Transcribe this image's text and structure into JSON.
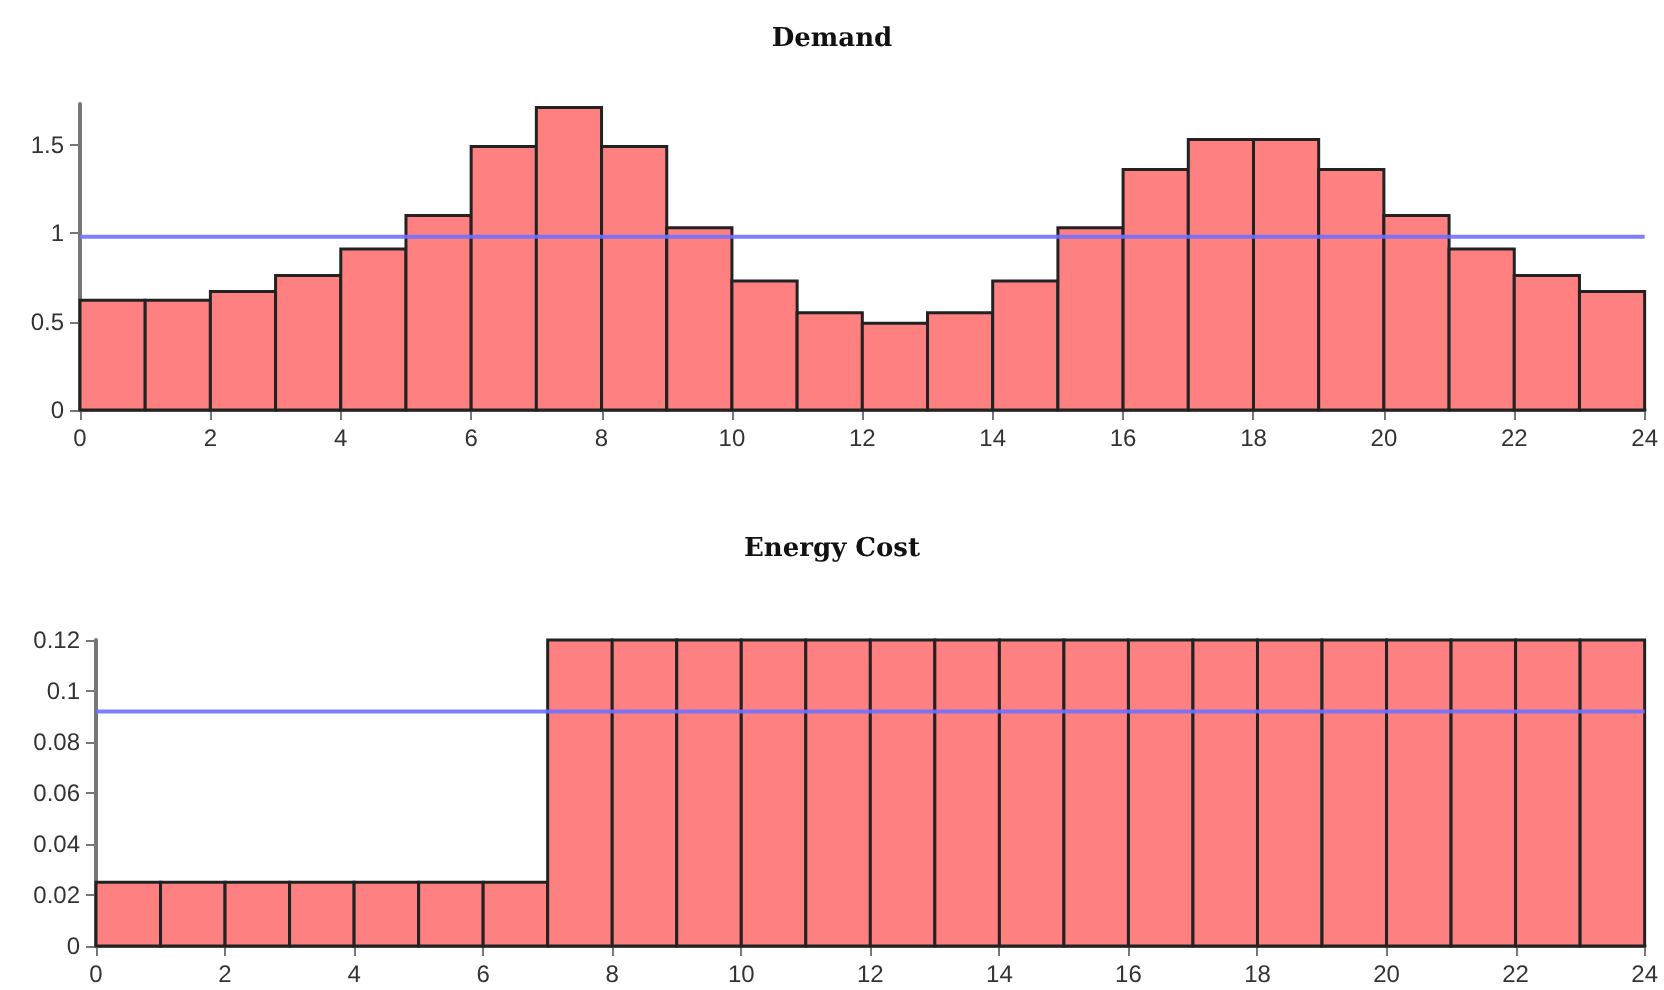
{
  "chart_data": [
    {
      "type": "histogram",
      "title": "Demand",
      "bins": [
        0,
        1,
        2,
        3,
        4,
        5,
        6,
        7,
        8,
        9,
        10,
        11,
        12,
        13,
        14,
        15,
        16,
        17,
        18,
        19,
        20,
        21,
        22,
        23,
        24
      ],
      "values": [
        0.62,
        0.62,
        0.67,
        0.76,
        0.91,
        1.1,
        1.49,
        1.71,
        1.49,
        1.03,
        0.73,
        0.55,
        0.49,
        0.55,
        0.73,
        1.03,
        1.36,
        1.53,
        1.53,
        1.36,
        1.1,
        0.91,
        0.76,
        0.67
      ],
      "color": "#ff8080",
      "xlim": [
        0,
        24
      ],
      "xticks": [
        0,
        2,
        4,
        6,
        8,
        10,
        12,
        14,
        16,
        18,
        20,
        22,
        24
      ],
      "ylim": [
        0,
        1.73
      ],
      "yticks": [
        0,
        0.5,
        1,
        1.5
      ],
      "ref_lines": [
        {
          "axis": "y",
          "value": 0.98,
          "color": "#7070ff"
        }
      ],
      "grid": false
    },
    {
      "type": "histogram",
      "title": "Energy Cost",
      "bins": [
        0,
        1,
        2,
        3,
        4,
        5,
        6,
        7,
        8,
        9,
        10,
        11,
        12,
        13,
        14,
        15,
        16,
        17,
        18,
        19,
        20,
        21,
        22,
        23,
        24
      ],
      "values": [
        0.025,
        0.025,
        0.025,
        0.025,
        0.025,
        0.025,
        0.025,
        0.12,
        0.12,
        0.12,
        0.12,
        0.12,
        0.12,
        0.12,
        0.12,
        0.12,
        0.12,
        0.12,
        0.12,
        0.12,
        0.12,
        0.12,
        0.12,
        0.12
      ],
      "color": "#ff8080",
      "xlim": [
        0,
        24
      ],
      "xticks": [
        0,
        2,
        4,
        6,
        8,
        10,
        12,
        14,
        16,
        18,
        20,
        22,
        24
      ],
      "ylim": [
        0,
        0.12
      ],
      "yticks": [
        0,
        0.02,
        0.04,
        0.06,
        0.08,
        0.1,
        0.12
      ],
      "ref_lines": [
        {
          "axis": "y",
          "value": 0.092,
          "color": "#7070ff"
        }
      ],
      "grid": false
    }
  ]
}
